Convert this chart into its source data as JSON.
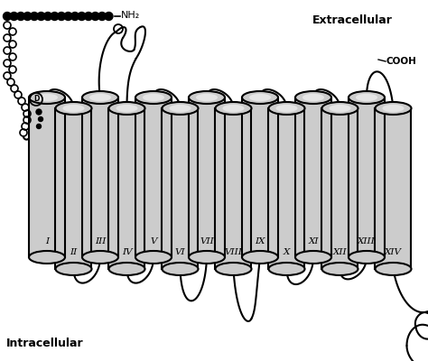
{
  "extracellular_label": "Extracellular",
  "intracellular_label": "Intracellular",
  "nh2_label": "NH₂",
  "cooh_label": "COOH",
  "background_color": "#ffffff",
  "helix_color": "#cccccc",
  "helix_edge_color": "#000000",
  "line_color": "#000000",
  "helix_labels": [
    "I",
    "II",
    "III",
    "IV",
    "V",
    "VI",
    "VII",
    "VIII",
    "IX",
    "X",
    "XI",
    "XII",
    "XIII",
    "XIV"
  ],
  "fig_width": 4.74,
  "fig_height": 4.0,
  "dpi": 100
}
